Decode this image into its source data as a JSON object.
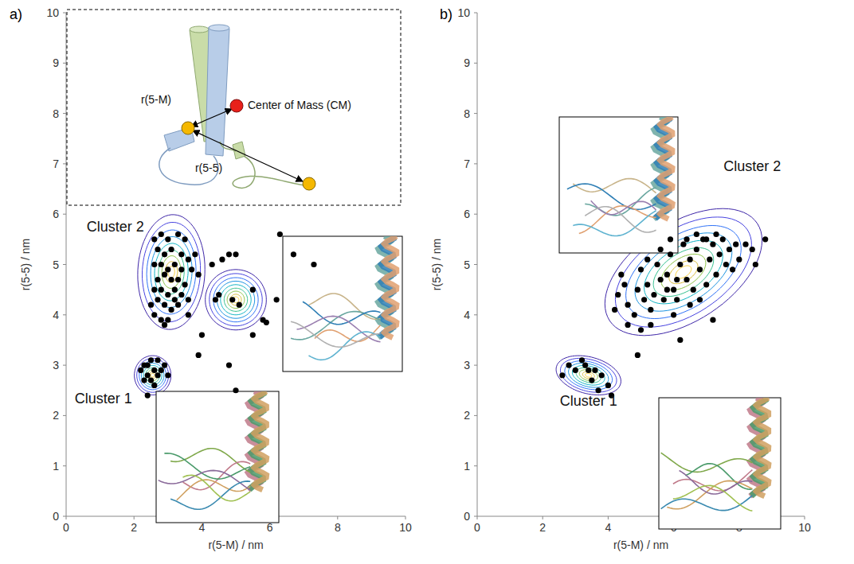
{
  "chart_data": [
    {
      "type": "scatter",
      "title": "a)",
      "x_label": "r(5-M) / nm",
      "y_label": "r(5-5) / nm",
      "xlim": [
        0,
        10
      ],
      "ylim": [
        0,
        10
      ],
      "xticks": [
        0,
        2,
        4,
        6,
        8,
        10
      ],
      "yticks": [
        0,
        1,
        2,
        3,
        4,
        5,
        6,
        7,
        8,
        9,
        10
      ],
      "color": "#000000",
      "marker": "circle",
      "x": [
        2.2,
        2.3,
        2.4,
        2.5,
        2.6,
        2.5,
        2.7,
        2.8,
        2.3,
        2.4,
        2.6,
        2.9,
        2.7,
        2.4,
        3.0,
        2.6,
        2.8,
        3.0,
        3.3,
        3.5,
        2.7,
        2.9,
        3.1,
        3.4,
        3.6,
        2.6,
        2.8,
        3.0,
        3.2,
        3.4,
        3.7,
        2.7,
        2.9,
        3.1,
        3.3,
        3.5,
        2.6,
        2.8,
        3.0,
        3.2,
        3.4,
        3.6,
        2.7,
        2.9,
        3.1,
        3.3,
        2.6,
        2.8,
        3.0,
        3.6,
        2.5,
        3.9,
        3.8,
        2.9,
        3.2,
        4.0,
        3.9,
        4.3,
        4.6,
        4.8,
        5.0,
        4.4,
        4.9,
        5.1,
        5.5,
        5.8,
        5.9,
        6.2,
        5.5,
        6.3,
        6.7,
        7.3,
        4.8,
        5.0,
        4.5
      ],
      "y": [
        2.9,
        3.0,
        2.8,
        2.7,
        2.9,
        3.1,
        2.8,
        2.9,
        2.7,
        3.0,
        2.6,
        3.0,
        3.1,
        2.4,
        2.8,
        5.5,
        5.6,
        5.5,
        5.6,
        5.5,
        5.3,
        5.2,
        5.3,
        5.2,
        5.1,
        5.0,
        5.0,
        4.9,
        5.0,
        4.9,
        4.9,
        4.7,
        4.8,
        4.7,
        4.7,
        4.6,
        4.5,
        4.5,
        4.4,
        4.5,
        4.4,
        4.3,
        4.3,
        4.2,
        4.1,
        4.2,
        4.0,
        3.9,
        3.9,
        4.0,
        4.2,
        4.8,
        5.2,
        3.8,
        4.3,
        3.6,
        3.2,
        5.0,
        5.1,
        5.2,
        5.2,
        4.3,
        4.3,
        4.2,
        4.5,
        3.9,
        3.85,
        4.3,
        3.6,
        5.6,
        5.2,
        5.0,
        3.0,
        2.5,
        4.4
      ],
      "density": [
        {
          "label": "Cluster 1",
          "center": [
            2.55,
            2.8
          ],
          "sd": [
            0.18,
            0.13
          ],
          "corr": 0.0
        },
        {
          "label": "Cluster 2",
          "center": [
            3.1,
            4.85
          ],
          "sd": [
            0.33,
            0.38
          ],
          "corr": 0.05
        },
        {
          "center": [
            5.0,
            4.3
          ],
          "sd": [
            0.3,
            0.2
          ],
          "corr": 0.0
        }
      ],
      "annotations": [
        {
          "text": "Cluster 2",
          "x": 1.45,
          "y": 5.65
        },
        {
          "text": "Cluster 1",
          "x": 1.1,
          "y": 2.25
        }
      ]
    },
    {
      "type": "scatter",
      "title": "b)",
      "x_label": "r(5-M) / nm",
      "y_label": "r(5-5) / nm",
      "xlim": [
        0,
        10
      ],
      "ylim": [
        0,
        10
      ],
      "xticks": [
        0,
        2,
        4,
        6,
        8,
        10
      ],
      "yticks": [
        0,
        1,
        2,
        3,
        4,
        5,
        6,
        7,
        8,
        9,
        10
      ],
      "color": "#000000",
      "marker": "circle",
      "x": [
        2.6,
        2.8,
        3.0,
        3.2,
        3.4,
        3.6,
        3.8,
        3.5,
        3.7,
        4.0,
        4.1,
        3.3,
        4.4,
        4.5,
        4.3,
        4.6,
        4.8,
        4.6,
        4.2,
        4.9,
        5.0,
        5.1,
        5.2,
        5.3,
        5.4,
        5.5,
        5.6,
        5.3,
        5.0,
        5.7,
        5.8,
        5.9,
        6.0,
        6.1,
        6.2,
        6.3,
        6.4,
        6.5,
        6.6,
        6.7,
        6.8,
        6.9,
        7.0,
        7.1,
        7.2,
        7.3,
        7.4,
        7.5,
        7.6,
        7.7,
        7.8,
        7.9,
        8.0,
        8.2,
        8.4,
        8.5,
        8.8,
        6.2,
        6.0,
        7.2,
        6.5,
        5.6,
        5.9,
        6.7,
        7.3,
        4.9,
        5.2,
        6.1,
        6.8,
        7.0,
        6.4,
        5.8
      ],
      "y": [
        2.8,
        3.0,
        2.9,
        3.1,
        2.9,
        2.9,
        2.8,
        2.7,
        2.5,
        2.6,
        2.4,
        3.0,
        4.8,
        4.6,
        4.4,
        4.2,
        4.0,
        3.8,
        4.1,
        4.5,
        4.9,
        4.3,
        4.6,
        4.1,
        4.4,
        5.0,
        4.7,
        3.8,
        3.7,
        4.3,
        4.8,
        5.2,
        4.5,
        4.3,
        5.0,
        5.4,
        4.7,
        5.1,
        4.5,
        5.3,
        4.9,
        5.5,
        4.6,
        5.1,
        5.4,
        4.8,
        5.2,
        5.5,
        5.0,
        5.3,
        4.9,
        5.4,
        5.1,
        5.4,
        5.3,
        5.0,
        5.5,
        3.5,
        4.0,
        3.9,
        4.2,
        5.3,
        5.5,
        5.6,
        5.6,
        3.2,
        5.1,
        4.7,
        4.3,
        5.5,
        5.5,
        4.5
      ],
      "density": [
        {
          "label": "Cluster 1",
          "center": [
            3.4,
            2.8
          ],
          "sd": [
            0.33,
            0.13
          ],
          "corr": -0.3
        },
        {
          "label": "Cluster 2",
          "center": [
            6.3,
            4.85
          ],
          "sd": [
            0.8,
            0.42
          ],
          "corr": 0.5
        }
      ],
      "annotations": [
        {
          "text": "Cluster 2",
          "x": 8.4,
          "y": 6.85
        },
        {
          "text": "Cluster 1",
          "x": 3.4,
          "y": 2.2
        }
      ]
    }
  ],
  "schematic": {
    "labels": [
      "r(5-M)",
      "Center of Mass (CM)",
      "r(5-5)"
    ]
  }
}
